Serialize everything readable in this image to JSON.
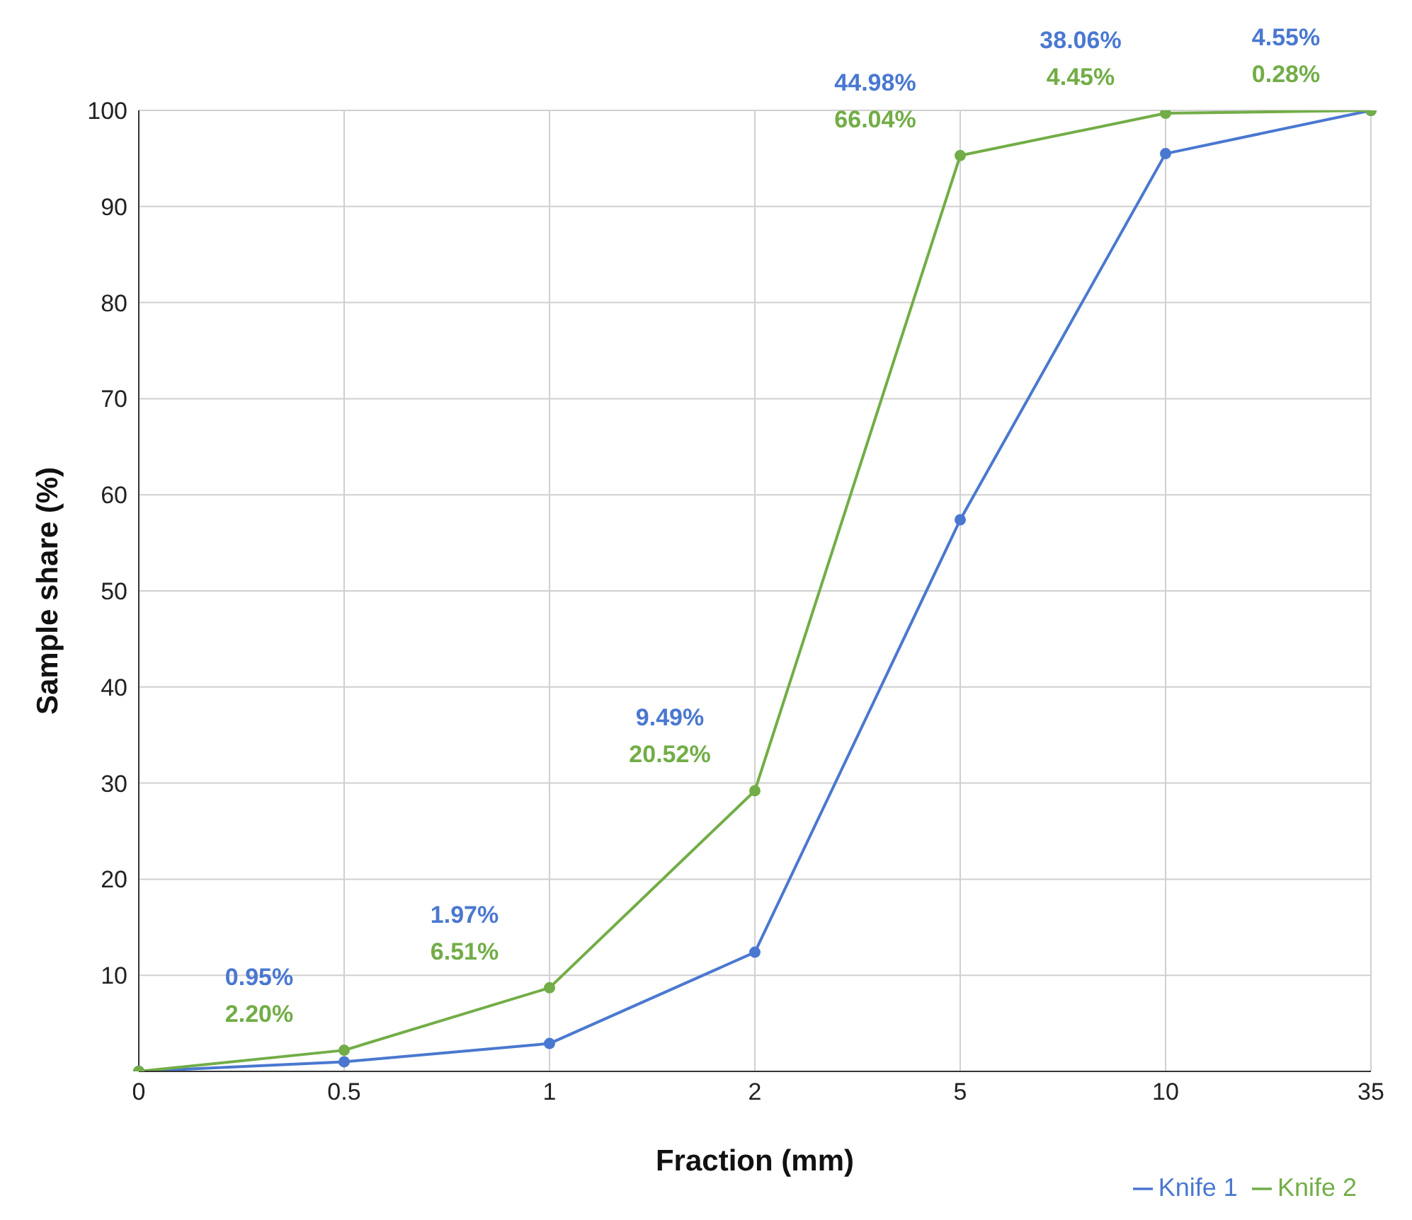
{
  "chart_data": {
    "type": "line",
    "xlabel": "Fraction (mm)",
    "ylabel": "Sample share (%)",
    "categories": [
      "0",
      "0.5",
      "1",
      "2",
      "5",
      "10",
      "35"
    ],
    "series": [
      {
        "name": "Knife 1",
        "color": "#4a78d0",
        "values": [
          0,
          1,
          2.9,
          12.4,
          57.4,
          95.5,
          100
        ]
      },
      {
        "name": "Knife 2",
        "color": "#72ad47",
        "values": [
          0,
          2.2,
          8.7,
          29.2,
          95.3,
          99.7,
          100
        ]
      }
    ],
    "annotations": [
      "0.95%",
      "2.20%",
      "1.97%",
      "6.51%",
      "9.49%",
      "20.52%",
      "44.98%",
      "66.04%",
      "38.06%",
      "4.45%",
      "4.55%",
      "0.28%"
    ],
    "ylim": [
      0,
      100
    ],
    "yticks": [
      10,
      20,
      30,
      40,
      50,
      60,
      70,
      80,
      90,
      100
    ],
    "grid": true,
    "legend": "bottom right",
    "marker": "circle",
    "line_style": "solid"
  }
}
